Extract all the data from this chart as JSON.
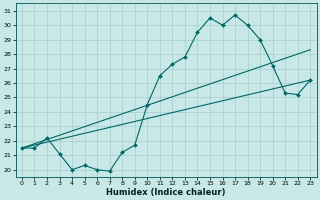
{
  "xlabel": "Humidex (Indice chaleur)",
  "bg_color": "#c8e8e8",
  "grid_color": "#b0d4d4",
  "line_color": "#006666",
  "xlim": [
    -0.5,
    23.5
  ],
  "ylim": [
    19.5,
    31.5
  ],
  "xticks": [
    0,
    1,
    2,
    3,
    4,
    5,
    6,
    7,
    8,
    9,
    10,
    11,
    12,
    13,
    14,
    15,
    16,
    17,
    18,
    19,
    20,
    21,
    22,
    23
  ],
  "yticks": [
    20,
    21,
    22,
    23,
    24,
    25,
    26,
    27,
    28,
    29,
    30,
    31
  ],
  "line1": {
    "x": [
      0,
      1,
      2,
      3,
      4,
      5,
      6,
      7,
      8,
      9,
      10,
      11,
      12,
      13,
      14,
      15,
      16,
      17,
      18,
      19,
      20,
      21,
      22,
      23
    ],
    "y": [
      21.5,
      21.5,
      22.2,
      21.1,
      20.0,
      20.3,
      20.0,
      19.9,
      21.2,
      21.7,
      24.5,
      26.5,
      27.3,
      27.8,
      29.5,
      30.5,
      30.0,
      30.7,
      30.0,
      29.0,
      27.2,
      25.3,
      25.2,
      26.2
    ]
  },
  "line2": {
    "x": [
      0,
      23
    ],
    "y": [
      21.5,
      26.2
    ]
  },
  "line3": {
    "x": [
      0,
      23
    ],
    "y": [
      21.5,
      28.3
    ]
  }
}
